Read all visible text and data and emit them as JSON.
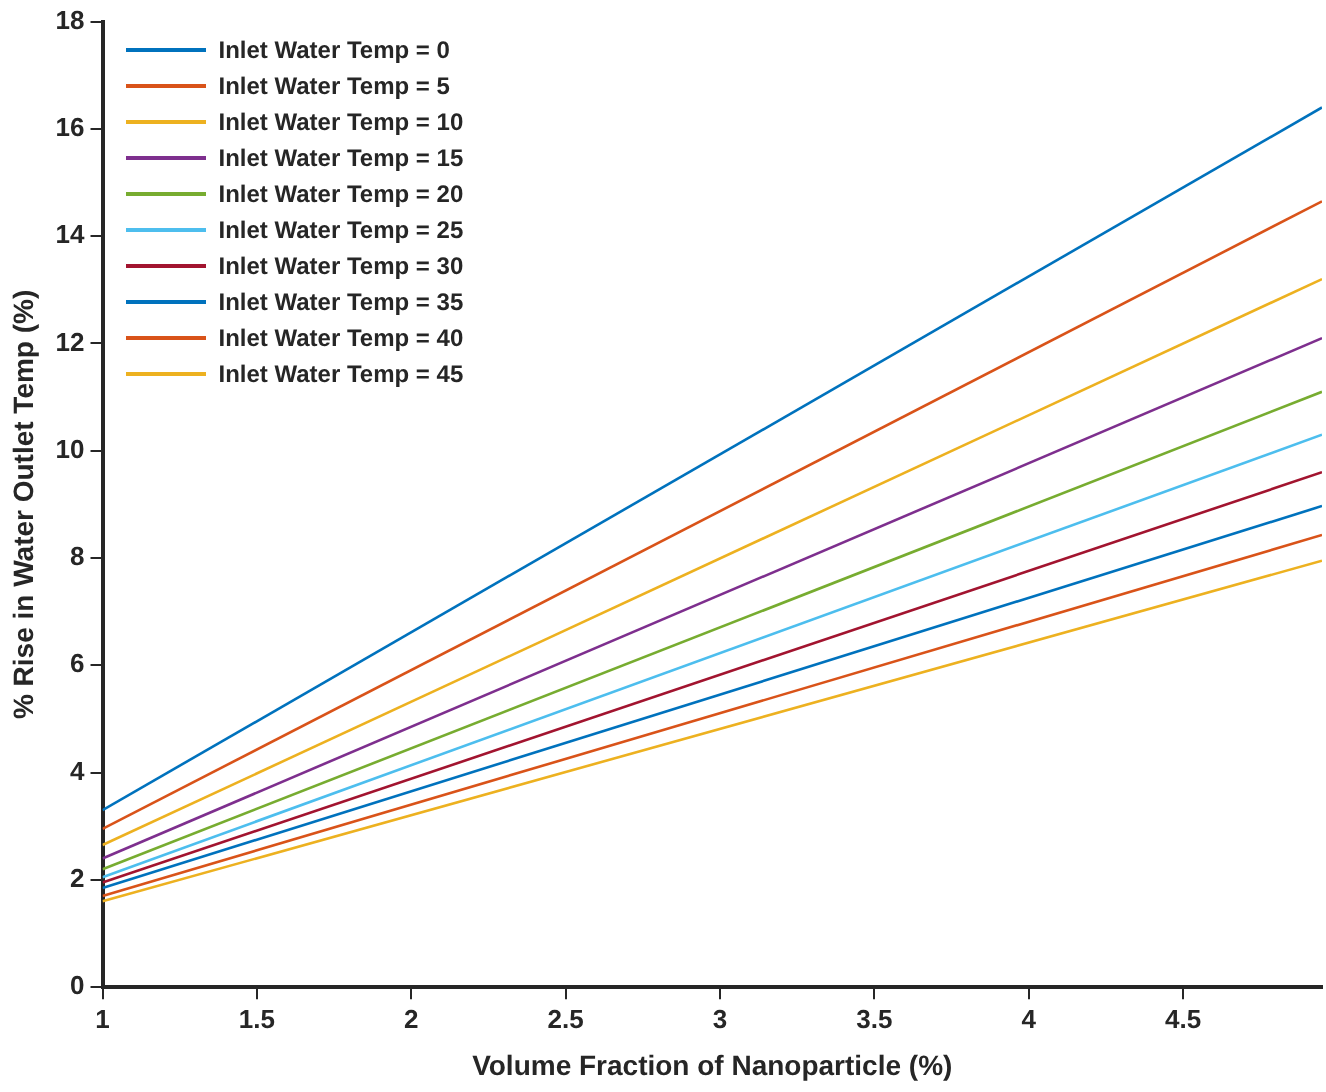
{
  "chart_data": {
    "type": "line",
    "xlabel": "Volume Fraction of Nanoparticle (%)",
    "ylabel": "% Rise in Water Outlet Temp (%)",
    "x": [
      1,
      4.95
    ],
    "series": [
      {
        "name": "Inlet Water Temp = 0",
        "color": "#0072bd",
        "values": [
          3.3,
          16.4
        ]
      },
      {
        "name": "Inlet Water Temp = 5",
        "color": "#d95319",
        "values": [
          2.95,
          14.65
        ]
      },
      {
        "name": "Inlet Water Temp = 10",
        "color": "#edb120",
        "values": [
          2.65,
          13.2
        ]
      },
      {
        "name": "Inlet Water Temp = 15",
        "color": "#7e2f8e",
        "values": [
          2.4,
          12.1
        ]
      },
      {
        "name": "Inlet Water Temp = 20",
        "color": "#77ac30",
        "values": [
          2.2,
          11.1
        ]
      },
      {
        "name": "Inlet Water Temp = 25",
        "color": "#4dbeee",
        "values": [
          2.05,
          10.3
        ]
      },
      {
        "name": "Inlet Water Temp = 30",
        "color": "#a2142f",
        "values": [
          1.95,
          9.6
        ]
      },
      {
        "name": "Inlet Water Temp = 35",
        "color": "#0072bd",
        "values": [
          1.85,
          8.97
        ]
      },
      {
        "name": "Inlet Water Temp = 40",
        "color": "#d95319",
        "values": [
          1.7,
          8.43
        ]
      },
      {
        "name": "Inlet Water Temp = 45",
        "color": "#edb120",
        "values": [
          1.6,
          7.95
        ]
      }
    ],
    "xlim": [
      1,
      4.95
    ],
    "xticks": [
      1,
      1.5,
      2,
      2.5,
      3,
      3.5,
      4,
      4.5
    ],
    "ylim": [
      0,
      18
    ],
    "yticks": [
      0,
      2,
      4,
      6,
      8,
      10,
      12,
      14,
      16,
      18
    ],
    "grid": false,
    "legend": "top left",
    "marker": "none",
    "line_style": "solid"
  }
}
